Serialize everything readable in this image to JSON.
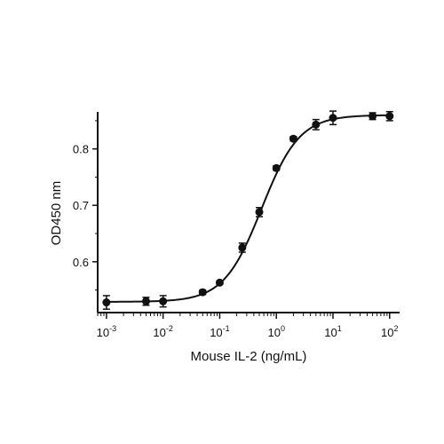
{
  "chart_data": {
    "type": "scatter",
    "xscale": "log",
    "xlabel": "Mouse IL-2 (ng/mL)",
    "ylabel": "OD450 nm",
    "xlim": [
      0.0007,
      150
    ],
    "ylim": [
      0.51,
      0.875
    ],
    "x_ticks": [
      {
        "value": 0.001,
        "base": "10",
        "exp": "-3"
      },
      {
        "value": 0.01,
        "base": "10",
        "exp": "-2"
      },
      {
        "value": 0.1,
        "base": "10",
        "exp": "-1"
      },
      {
        "value": 1,
        "base": "10",
        "exp": "0"
      },
      {
        "value": 10,
        "base": "10",
        "exp": "1"
      },
      {
        "value": 100,
        "base": "10",
        "exp": "2"
      }
    ],
    "y_ticks": [
      {
        "value": 0.6,
        "label": "0.6"
      },
      {
        "value": 0.7,
        "label": "0.7"
      },
      {
        "value": 0.8,
        "label": "0.8"
      }
    ],
    "grid": false,
    "legend": "none",
    "colors": {
      "marker": "#111111",
      "line": "#111111",
      "axis": "#111111"
    },
    "series": [
      {
        "points": [
          {
            "x": 0.001,
            "y": 0.528,
            "err": 0.012
          },
          {
            "x": 0.005,
            "y": 0.53,
            "err": 0.007
          },
          {
            "x": 0.01,
            "y": 0.53,
            "err": 0.01
          },
          {
            "x": 0.05,
            "y": 0.546,
            "err": 0.004
          },
          {
            "x": 0.1,
            "y": 0.563,
            "err": 0.003
          },
          {
            "x": 0.25,
            "y": 0.625,
            "err": 0.008
          },
          {
            "x": 0.5,
            "y": 0.688,
            "err": 0.008
          },
          {
            "x": 1,
            "y": 0.766,
            "err": 0.004
          },
          {
            "x": 2,
            "y": 0.818,
            "err": 0.004
          },
          {
            "x": 5,
            "y": 0.843,
            "err": 0.009
          },
          {
            "x": 10,
            "y": 0.855,
            "err": 0.012
          },
          {
            "x": 50,
            "y": 0.858,
            "err": 0.006
          },
          {
            "x": 100,
            "y": 0.858,
            "err": 0.008
          }
        ],
        "fit": {
          "model": "4PL",
          "bottom": 0.529,
          "top": 0.86,
          "ec50": 0.55,
          "hill": 1.3
        }
      }
    ]
  }
}
